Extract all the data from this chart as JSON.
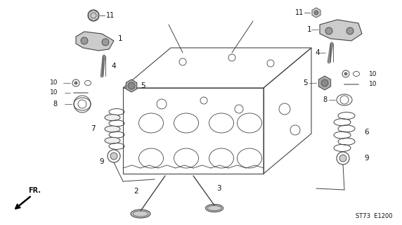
{
  "bg_color": "#ffffff",
  "fig_width": 5.72,
  "fig_height": 3.2,
  "dpi": 100,
  "watermark": "ST73  E1200"
}
